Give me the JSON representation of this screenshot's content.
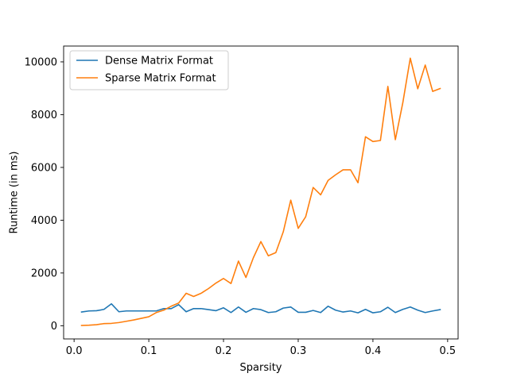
{
  "chart_data": {
    "type": "line",
    "title": "",
    "xlabel": "Sparsity",
    "ylabel": "Runtime (in ms)",
    "xlim": [
      -0.014,
      0.514
    ],
    "ylim": [
      -500,
      10600
    ],
    "x_ticks": [
      0.0,
      0.1,
      0.2,
      0.3,
      0.4,
      0.5
    ],
    "x_tick_labels": [
      "0.0",
      "0.1",
      "0.2",
      "0.3",
      "0.4",
      "0.5"
    ],
    "y_ticks": [
      0,
      2000,
      4000,
      6000,
      8000,
      10000
    ],
    "y_tick_labels": [
      "0",
      "2000",
      "4000",
      "6000",
      "8000",
      "10000"
    ],
    "grid": false,
    "legend_position": "top-left",
    "x": [
      0.01,
      0.02,
      0.03,
      0.04,
      0.05,
      0.06,
      0.07,
      0.08,
      0.09,
      0.1,
      0.11,
      0.12,
      0.13,
      0.14,
      0.15,
      0.16,
      0.17,
      0.18,
      0.19,
      0.2,
      0.21,
      0.22,
      0.23,
      0.24,
      0.25,
      0.26,
      0.27,
      0.28,
      0.29,
      0.3,
      0.31,
      0.32,
      0.33,
      0.34,
      0.35,
      0.36,
      0.37,
      0.38,
      0.39,
      0.4,
      0.41,
      0.42,
      0.43,
      0.44,
      0.45,
      0.46,
      0.47,
      0.48,
      0.49
    ],
    "series": [
      {
        "name": "Dense Matrix Format",
        "color": "#1f77b4",
        "values": [
          520,
          560,
          570,
          620,
          830,
          530,
          560,
          560,
          560,
          560,
          560,
          650,
          650,
          800,
          530,
          650,
          650,
          610,
          570,
          680,
          500,
          710,
          510,
          650,
          610,
          500,
          530,
          670,
          710,
          510,
          510,
          580,
          500,
          740,
          590,
          520,
          560,
          490,
          620,
          490,
          530,
          700,
          500,
          620,
          710,
          590,
          500,
          560,
          610
        ]
      },
      {
        "name": "Sparse Matrix Format",
        "color": "#ff7f0e",
        "values": [
          10,
          20,
          40,
          80,
          90,
          120,
          170,
          220,
          280,
          340,
          500,
          590,
          740,
          860,
          1230,
          1110,
          1230,
          1410,
          1620,
          1790,
          1600,
          2450,
          1830,
          2580,
          3190,
          2650,
          2770,
          3560,
          4760,
          3690,
          4130,
          5240,
          4960,
          5510,
          5720,
          5910,
          5910,
          5420,
          7160,
          6980,
          7020,
          9070,
          7050,
          8450,
          10140,
          8980,
          9880,
          8880,
          8990
        ]
      }
    ]
  }
}
